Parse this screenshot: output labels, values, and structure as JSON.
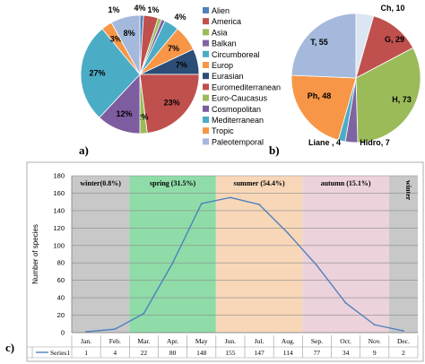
{
  "panels": {
    "a": "a)",
    "b": "b)",
    "c": "c)"
  },
  "chart_data": [
    {
      "type": "pie",
      "panel": "a",
      "slices": [
        {
          "name": "Alien",
          "value": 1,
          "label": "",
          "color": "#4f81bd"
        },
        {
          "name": "America",
          "value": 4,
          "label": "4%",
          "color": "#c0504d"
        },
        {
          "name": "Asia",
          "value": 1,
          "label": "1%",
          "color": "#9bbb59"
        },
        {
          "name": "Balkan",
          "value": 1,
          "label": "",
          "color": "#8064a2"
        },
        {
          "name": "Circumboreal",
          "value": 4,
          "label": "4%",
          "color": "#4bacc6"
        },
        {
          "name": "Europ",
          "value": 7,
          "label": "7%",
          "color": "#f79646"
        },
        {
          "name": "Eurasian",
          "value": 7,
          "label": "7%",
          "color": "#2c4d75"
        },
        {
          "name": "Euromediterranean",
          "value": 23,
          "label": "23%",
          "color": "#c0504d"
        },
        {
          "name": "Euro-Caucasus",
          "value": 2,
          "label": "2%",
          "color": "#9bbb59"
        },
        {
          "name": "Cosmopolitan",
          "value": 12,
          "label": "12%",
          "color": "#7e5ca0"
        },
        {
          "name": "Mediterranean",
          "value": 27,
          "label": "27%",
          "color": "#4bacc6"
        },
        {
          "name": "Tropic",
          "value": 3,
          "label": "3%",
          "color": "#f79646"
        },
        {
          "name": "Paleotemporal",
          "value": 8,
          "label": "8%",
          "color": "#a5b9dd"
        }
      ],
      "outside_label": "1%"
    },
    {
      "type": "pie",
      "panel": "b",
      "slices": [
        {
          "name": "Ch",
          "value": 10,
          "label": "Ch, 10",
          "color": "#dce6f2"
        },
        {
          "name": "G",
          "value": 29,
          "label": "G, 29",
          "color": "#c0504d"
        },
        {
          "name": "H",
          "value": 73,
          "label": "H, 73",
          "color": "#9bbb59"
        },
        {
          "name": "Hidro",
          "value": 7,
          "label": "Hidro, 7",
          "color": "#8064a2"
        },
        {
          "name": "Liane",
          "value": 4,
          "label": "Liane , 4",
          "color": "#4bacc6"
        },
        {
          "name": "Ph",
          "value": 48,
          "label": "Ph, 48",
          "color": "#f79646"
        },
        {
          "name": "T",
          "value": 55,
          "label": "T, 55",
          "color": "#a5b9dd"
        }
      ]
    },
    {
      "type": "line",
      "panel": "c",
      "categories": [
        "Jan.",
        "Feb.",
        "Mar.",
        "Apr.",
        "May",
        "Jun.",
        "Jul.",
        "Aug.",
        "Sep.",
        "Oct.",
        "Nov.",
        "Dec."
      ],
      "series": [
        {
          "name": "Series1",
          "values": [
            1,
            4,
            22,
            80,
            148,
            155,
            147,
            114,
            77,
            34,
            9,
            2
          ],
          "color": "#4f81bd"
        }
      ],
      "ylabel": "Number of species",
      "ylim": [
        0,
        180
      ],
      "yticks": [
        0,
        20,
        40,
        60,
        80,
        100,
        120,
        140,
        160,
        180
      ],
      "grid": true,
      "seasons": [
        {
          "label": "winter(0.8%)",
          "from": 0,
          "to": 2,
          "color": "#c8c8c8"
        },
        {
          "label": "spring (31.5%)",
          "from": 2,
          "to": 5,
          "color": "#8fdca8"
        },
        {
          "label": "summer (54.4%)",
          "from": 5,
          "to": 8,
          "color": "#f8d7b8"
        },
        {
          "label": "autumn (15.1%)",
          "from": 8,
          "to": 11,
          "color": "#ecd2da"
        },
        {
          "label": "winter",
          "from": 11,
          "to": 12,
          "color": "#c8c8c8"
        }
      ]
    }
  ]
}
